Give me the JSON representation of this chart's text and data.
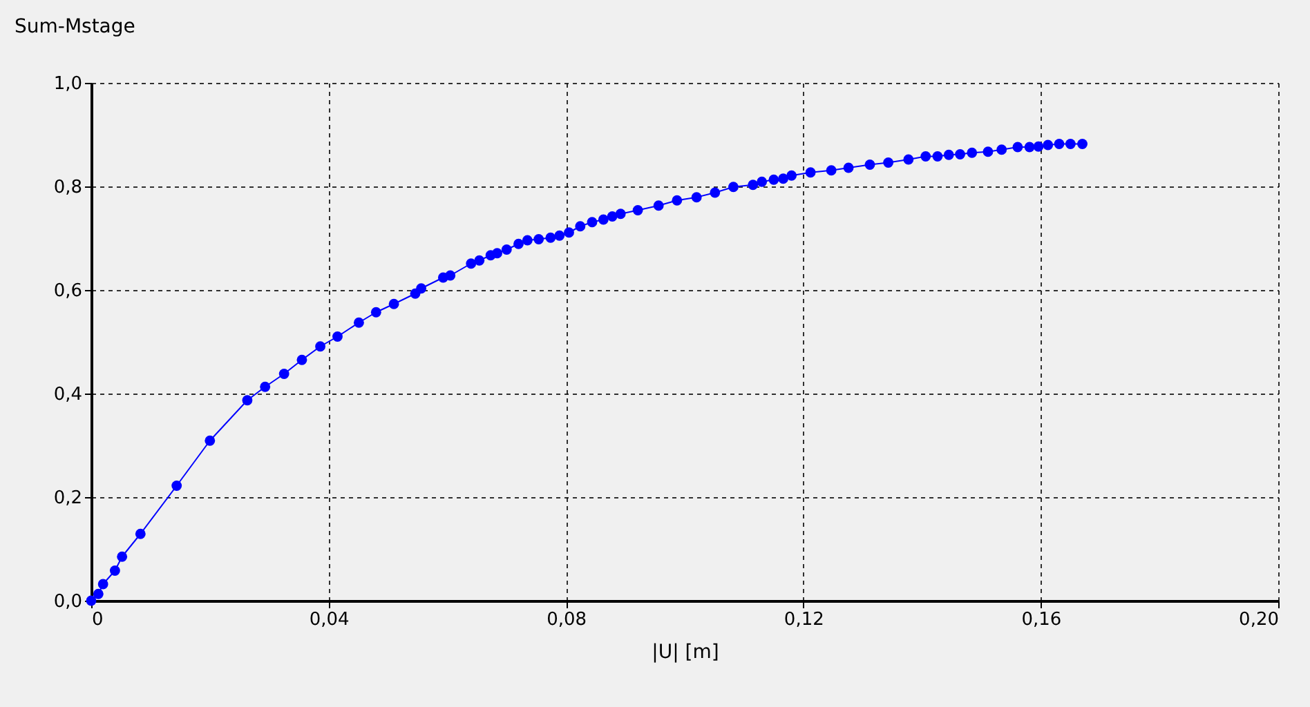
{
  "chart_data": {
    "type": "line",
    "xlabel": "|U| [m]",
    "ylabel": "Sum-Mstage",
    "x": [
      0,
      0.0012,
      0.002,
      0.004,
      0.0052,
      0.0083,
      0.0144,
      0.02,
      0.0263,
      0.0293,
      0.0325,
      0.0355,
      0.0386,
      0.0415,
      0.0451,
      0.048,
      0.051,
      0.0546,
      0.0556,
      0.0593,
      0.0605,
      0.064,
      0.0654,
      0.0673,
      0.0684,
      0.07,
      0.072,
      0.0735,
      0.0754,
      0.0774,
      0.0789,
      0.0805,
      0.0824,
      0.0844,
      0.0863,
      0.0878,
      0.0892,
      0.0921,
      0.0956,
      0.0987,
      0.102,
      0.1051,
      0.1082,
      0.1115,
      0.113,
      0.115,
      0.1166,
      0.118,
      0.1212,
      0.1247,
      0.1276,
      0.1312,
      0.1343,
      0.1377,
      0.1406,
      0.1426,
      0.1445,
      0.1464,
      0.1484,
      0.1511,
      0.1534,
      0.1561,
      0.1581,
      0.1596,
      0.1612,
      0.1631,
      0.165,
      0.167
    ],
    "series": [
      {
        "color": "#0000ff",
        "values": [
          0,
          0.013,
          0.032,
          0.058,
          0.085,
          0.129,
          0.222,
          0.309,
          0.387,
          0.413,
          0.438,
          0.465,
          0.491,
          0.51,
          0.537,
          0.557,
          0.573,
          0.593,
          0.603,
          0.624,
          0.628,
          0.651,
          0.657,
          0.667,
          0.671,
          0.678,
          0.689,
          0.696,
          0.698,
          0.701,
          0.705,
          0.711,
          0.723,
          0.731,
          0.736,
          0.742,
          0.747,
          0.754,
          0.763,
          0.773,
          0.779,
          0.788,
          0.799,
          0.803,
          0.809,
          0.813,
          0.815,
          0.821,
          0.827,
          0.831,
          0.836,
          0.842,
          0.846,
          0.852,
          0.858,
          0.858,
          0.861,
          0.862,
          0.865,
          0.867,
          0.871,
          0.876,
          0.876,
          0.877,
          0.88,
          0.882,
          0.882,
          0.882
        ]
      }
    ],
    "xlim": [
      0,
      0.2
    ],
    "xticks": [
      {
        "value": 0,
        "label": "0"
      },
      {
        "value": 0.04,
        "label": "0,04"
      },
      {
        "value": 0.08,
        "label": "0,08"
      },
      {
        "value": 0.12,
        "label": "0,12"
      },
      {
        "value": 0.16,
        "label": "0,16"
      },
      {
        "value": 0.2,
        "label": "0,20"
      }
    ],
    "ylim": [
      0,
      1
    ],
    "yticks": [
      {
        "value": 0,
        "label": "0,0"
      },
      {
        "value": 0.2,
        "label": "0,2"
      },
      {
        "value": 0.4,
        "label": "0,4"
      },
      {
        "value": 0.6,
        "label": "0,6"
      },
      {
        "value": 0.8,
        "label": "0,8"
      },
      {
        "value": 1,
        "label": "1,0"
      }
    ],
    "grid": true,
    "marker": "circle",
    "line_style": "solid",
    "legend": false
  }
}
